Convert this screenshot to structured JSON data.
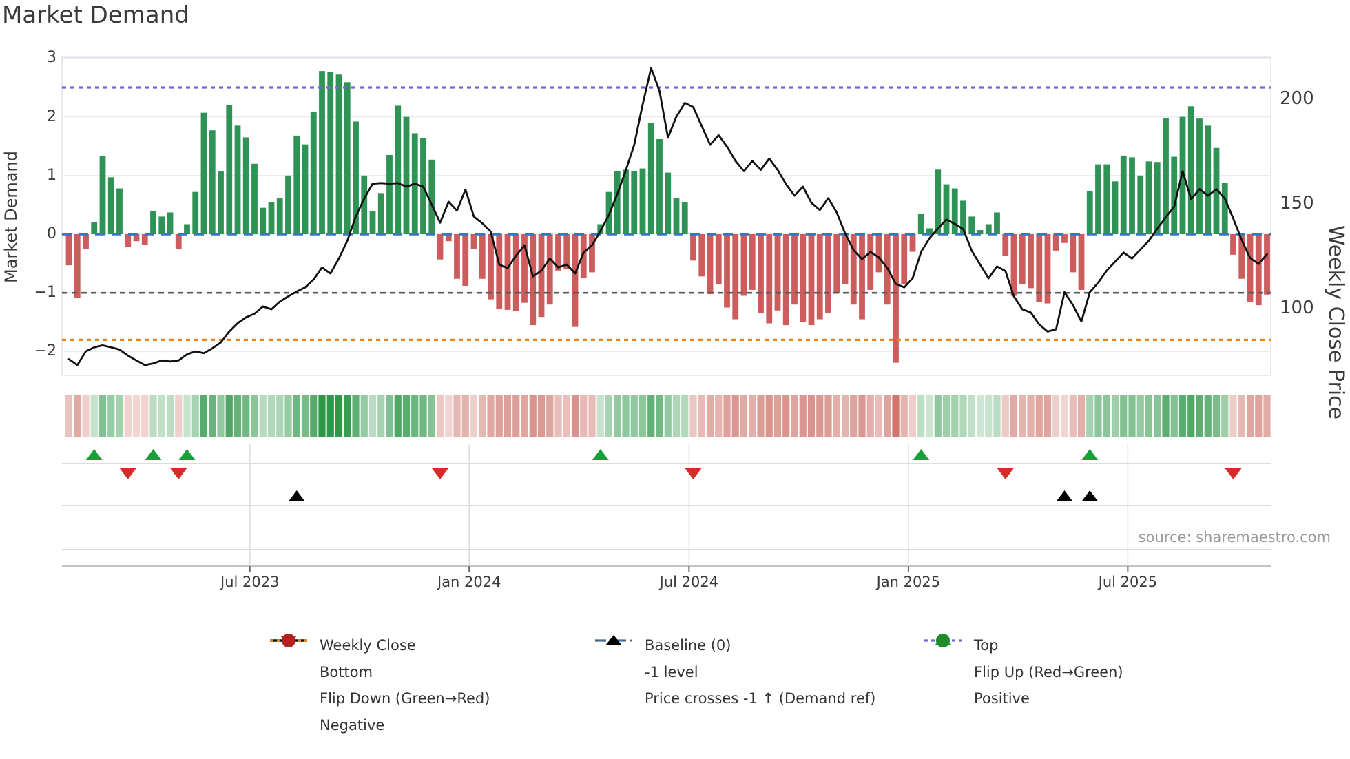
{
  "title": "Market Demand",
  "source": "source: sharemaestro.com",
  "axes": {
    "left_label": "Market Demand",
    "right_label": "Weekly Close Price",
    "left_ticks": [
      "3",
      "2",
      "1",
      "0",
      "−1",
      "−2"
    ],
    "left_tick_values": [
      3,
      2,
      1,
      0,
      -1,
      -2
    ],
    "right_ticks": [
      "200",
      "150",
      "100"
    ],
    "right_tick_values": [
      200,
      150,
      100
    ],
    "x_ticks": [
      "Jul 2023",
      "Jan 2024",
      "Jul 2024",
      "Jan 2025",
      "Jul 2025"
    ],
    "x_tick_weeks": [
      21.45,
      47.45,
      73.5,
      99.5,
      125.5
    ]
  },
  "chart_data": {
    "type": "bar",
    "subtype": "weekly demand bars + price line + sign heatmap + flip markers",
    "n_weeks": 143,
    "ylabel": "Market Demand",
    "ylabel_right": "Weekly Close Price",
    "ylim_demand": [
      -2.45,
      3.0
    ],
    "grid": "horizontal",
    "reference_lines": {
      "baseline": 0,
      "top": 2.5,
      "bottom": -1.8,
      "minus_one_level": -1
    },
    "demand_bars": [
      -0.53,
      -1.09,
      -0.25,
      0.2,
      1.33,
      0.97,
      0.78,
      -0.22,
      -0.12,
      -0.18,
      0.4,
      0.3,
      0.37,
      -0.25,
      0.17,
      0.72,
      2.07,
      1.77,
      1.07,
      2.2,
      1.85,
      1.65,
      1.2,
      0.45,
      0.55,
      0.61,
      1.0,
      1.68,
      1.53,
      2.09,
      2.78,
      2.77,
      2.72,
      2.59,
      1.92,
      1.0,
      0.39,
      0.7,
      1.35,
      2.19,
      2.0,
      1.72,
      1.64,
      1.27,
      -0.43,
      -0.12,
      -0.76,
      -0.88,
      -0.25,
      -0.76,
      -1.11,
      -1.27,
      -1.29,
      -1.31,
      -1.17,
      -1.55,
      -1.41,
      -1.2,
      -0.62,
      -0.6,
      -1.58,
      -0.75,
      -0.65,
      0.17,
      0.72,
      1.07,
      1.1,
      1.08,
      1.12,
      1.9,
      1.62,
      1.05,
      0.62,
      0.55,
      -0.45,
      -0.72,
      -1.02,
      -0.85,
      -1.25,
      -1.45,
      -1.05,
      -0.95,
      -1.35,
      -1.52,
      -1.3,
      -1.55,
      -1.2,
      -1.5,
      -1.55,
      -1.45,
      -1.35,
      -1.0,
      -0.85,
      -1.2,
      -1.45,
      -0.95,
      -0.65,
      -1.2,
      -2.19,
      -0.85,
      -0.3,
      0.35,
      0.1,
      1.1,
      0.85,
      0.78,
      0.57,
      0.3,
      0.07,
      0.17,
      0.37,
      -0.37,
      -1.05,
      -0.85,
      -0.92,
      -1.15,
      -1.18,
      -0.28,
      -0.15,
      -0.65,
      -0.95,
      0.74,
      1.19,
      1.19,
      0.9,
      1.34,
      1.31,
      1.0,
      1.24,
      1.23,
      1.98,
      1.32,
      2.0,
      2.18,
      1.97,
      1.85,
      1.47,
      0.88,
      -0.35,
      -0.76,
      -1.15,
      -1.21,
      -1.03
    ],
    "weekly_close": [
      75.5,
      72.7,
      79.2,
      81.2,
      82.1,
      81.2,
      80.1,
      77.2,
      74.9,
      72.7,
      73.5,
      74.9,
      74.4,
      74.9,
      77.8,
      79.2,
      78.4,
      80.7,
      83.5,
      88.7,
      92.7,
      95.5,
      97.2,
      100.7,
      99.3,
      103.0,
      105.5,
      107.8,
      109.8,
      113.6,
      119.3,
      116.4,
      123.6,
      132.1,
      143.6,
      152.2,
      159.3,
      159.6,
      159.3,
      159.6,
      157.9,
      159.3,
      157.9,
      149.3,
      140.7,
      150.7,
      146.4,
      156.5,
      143.6,
      140.4,
      136.4,
      120.7,
      119.0,
      125.0,
      129.9,
      115.0,
      117.8,
      123.6,
      119.3,
      120.7,
      116.4,
      126.4,
      129.9,
      136.7,
      144.4,
      154.4,
      165.6,
      177.9,
      197.1,
      214.5,
      203.6,
      181.3,
      191.3,
      197.9,
      195.9,
      186.8,
      177.9,
      182.5,
      177.0,
      170.2,
      165.3,
      170.2,
      165.9,
      171.3,
      165.9,
      159.0,
      153.6,
      157.9,
      150.2,
      146.7,
      152.4,
      145.6,
      135.6,
      127.6,
      123.3,
      126.7,
      124.1,
      119.0,
      111.5,
      109.8,
      114.1,
      126.7,
      133.3,
      137.9,
      142.2,
      140.1,
      137.6,
      127.3,
      120.7,
      114.1,
      119.8,
      117.6,
      105.5,
      99.3,
      97.8,
      92.1,
      88.7,
      89.8,
      107.5,
      101.3,
      93.5,
      107.5,
      112.1,
      117.8,
      122.1,
      126.4,
      123.6,
      127.9,
      132.1,
      137.9,
      143.3,
      148.4,
      165.3,
      151.9,
      156.7,
      153.6,
      156.7,
      152.2,
      142.7,
      132.4,
      123.8,
      121.0,
      125.6
    ],
    "markers": {
      "flip_up_weeks": [
        3,
        10,
        14,
        63,
        101,
        121
      ],
      "flip_down_weeks": [
        7,
        13,
        44,
        74,
        111,
        138
      ],
      "price_cross_minus1_weeks": [
        27,
        118,
        121
      ]
    }
  },
  "legend": {
    "columns": [
      {
        "items": [
          {
            "label": "Weekly Close",
            "swatch": "line-black"
          },
          {
            "label": "Bottom",
            "swatch": "dot-orange"
          },
          {
            "label": "Flip Down (Green→Red)",
            "swatch": "tri-down-red"
          },
          {
            "label": "Negative",
            "swatch": "circle-darkred"
          }
        ]
      },
      {
        "items": [
          {
            "label": "Baseline (0)",
            "swatch": "dash-blue"
          },
          {
            "label": "-1 level",
            "swatch": "dot-gray"
          },
          {
            "label": "Price crosses -1 ↑ (Demand ref)",
            "swatch": "tri-up-black"
          }
        ]
      },
      {
        "items": [
          {
            "label": "Top",
            "swatch": "dot-purple"
          },
          {
            "label": "Flip Up (Red→Green)",
            "swatch": "tri-up-green"
          },
          {
            "label": "Positive",
            "swatch": "circle-green"
          }
        ]
      }
    ]
  },
  "colors": {
    "bar_positive": "#2f9355",
    "bar_negative": "#cd5c5c",
    "price_line": "#111111",
    "baseline": "#3579b8",
    "top_line": "#7568d6",
    "bottom_line": "#e8881c",
    "minus_one_line": "#5a5a5a",
    "flip_up": "#18a038",
    "flip_down": "#d62b2b",
    "price_cross": "#000000",
    "positive_dot": "#1f8b2c",
    "negative_dot": "#b22222",
    "gridline": "#eaeaf2",
    "panel_line": "#d0d0d0",
    "heat_green": "#2c9646",
    "heat_red": "#c65a50"
  }
}
